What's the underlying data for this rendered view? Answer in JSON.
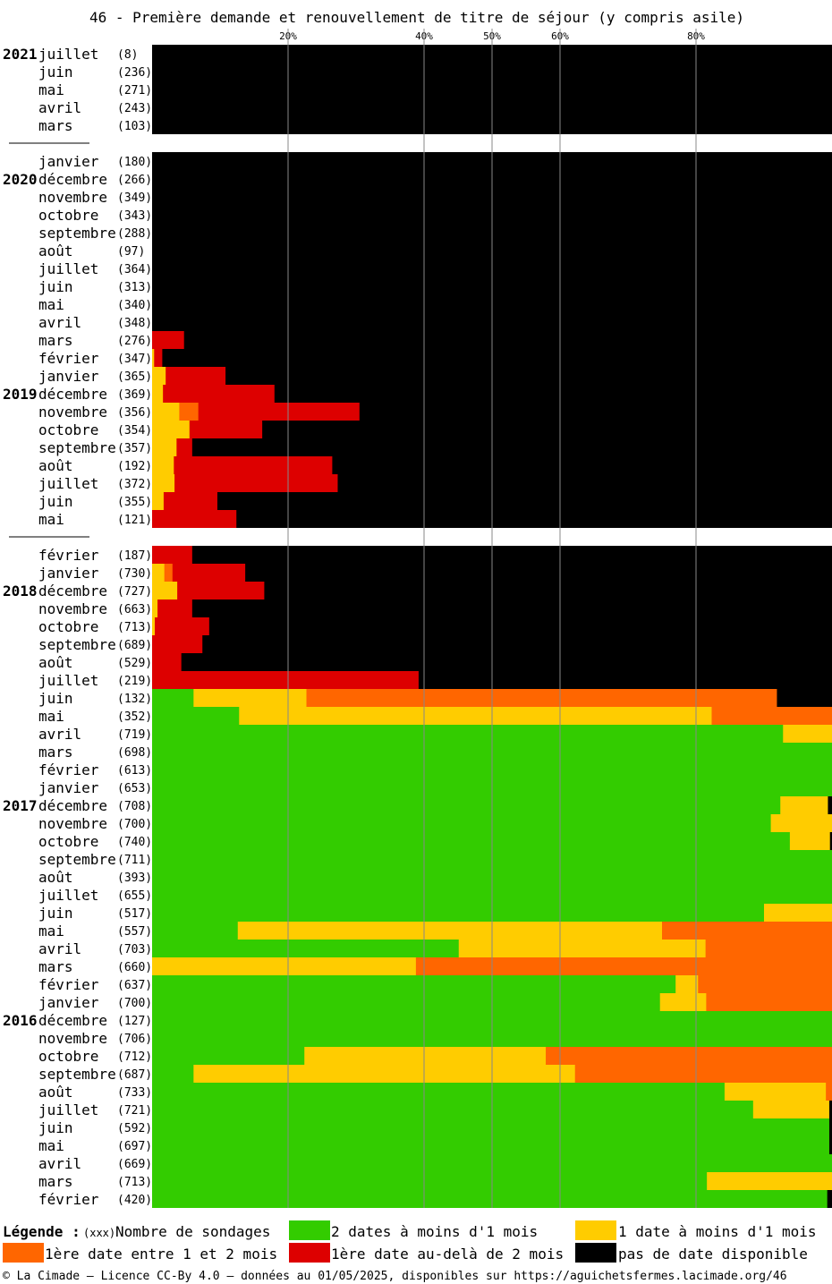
{
  "chart_data": {
    "type": "bar",
    "stacked": true,
    "orientation": "horizontal",
    "title": "46 - Première demande et renouvellement de titre de séjour (y compris asile)",
    "x_ticks": [
      "20%",
      "40%",
      "50%",
      "60%",
      "80%"
    ],
    "tick_values": [
      20,
      40,
      50,
      60,
      80
    ],
    "xlim": [
      0,
      100
    ],
    "series": [
      {
        "key": "green",
        "name": "2 dates à moins d'1 mois",
        "color": "#33cc00"
      },
      {
        "key": "yellow",
        "name": "1 date à moins d'1 mois",
        "color": "#ffcc00"
      },
      {
        "key": "orange",
        "name": "1ère date entre 1 et 2 mois",
        "color": "#ff6600"
      },
      {
        "key": "red",
        "name": "1ère date au-delà de 2 mois",
        "color": "#dd0000"
      },
      {
        "key": "black",
        "name": "pas de date disponible",
        "color": "#000000"
      }
    ],
    "rows": [
      {
        "year": "2021",
        "month": "juillet",
        "count": "(8)",
        "green": 0,
        "yellow": 0,
        "orange": 0,
        "red": 0,
        "black": 100
      },
      {
        "year": "",
        "month": "juin",
        "count": "(236)",
        "green": 0,
        "yellow": 0,
        "orange": 0,
        "red": 0,
        "black": 100
      },
      {
        "year": "",
        "month": "mai",
        "count": "(271)",
        "green": 0,
        "yellow": 0,
        "orange": 0,
        "red": 0,
        "black": 100
      },
      {
        "year": "",
        "month": "avril",
        "count": "(243)",
        "green": 0,
        "yellow": 0,
        "orange": 0,
        "red": 0,
        "black": 100
      },
      {
        "year": "",
        "month": "mars",
        "count": "(103)",
        "green": 0,
        "yellow": 0,
        "orange": 0,
        "red": 0,
        "black": 100
      },
      {
        "gap": true
      },
      {
        "year": "",
        "month": "janvier",
        "count": "(180)",
        "green": 0,
        "yellow": 0,
        "orange": 0,
        "red": 0,
        "black": 100
      },
      {
        "year": "2020",
        "month": "décembre",
        "count": "(266)",
        "green": 0,
        "yellow": 0,
        "orange": 0,
        "red": 0,
        "black": 100
      },
      {
        "year": "",
        "month": "novembre",
        "count": "(349)",
        "green": 0,
        "yellow": 0,
        "orange": 0,
        "red": 0,
        "black": 100
      },
      {
        "year": "",
        "month": "octobre",
        "count": "(343)",
        "green": 0,
        "yellow": 0,
        "orange": 0,
        "red": 0,
        "black": 100
      },
      {
        "year": "",
        "month": "septembre",
        "count": "(288)",
        "green": 0,
        "yellow": 0,
        "orange": 0,
        "red": 0,
        "black": 100
      },
      {
        "year": "",
        "month": "août",
        "count": "(97)",
        "green": 0,
        "yellow": 0,
        "orange": 0,
        "red": 0,
        "black": 100
      },
      {
        "year": "",
        "month": "juillet",
        "count": "(364)",
        "green": 0,
        "yellow": 0,
        "orange": 0,
        "red": 0,
        "black": 100
      },
      {
        "year": "",
        "month": "juin",
        "count": "(313)",
        "green": 0,
        "yellow": 0,
        "orange": 0,
        "red": 0,
        "black": 100
      },
      {
        "year": "",
        "month": "mai",
        "count": "(340)",
        "green": 0,
        "yellow": 0,
        "orange": 0,
        "red": 0,
        "black": 100
      },
      {
        "year": "",
        "month": "avril",
        "count": "(348)",
        "green": 0,
        "yellow": 0,
        "orange": 0,
        "red": 0,
        "black": 100
      },
      {
        "year": "",
        "month": "mars",
        "count": "(276)",
        "green": 0,
        "yellow": 0,
        "orange": 0,
        "red": 4.7,
        "black": 95.3
      },
      {
        "year": "",
        "month": "février",
        "count": "(347)",
        "green": 0,
        "yellow": 0.3,
        "orange": 0,
        "red": 1.2,
        "black": 98.5
      },
      {
        "year": "",
        "month": "janvier",
        "count": "(365)",
        "green": 0,
        "yellow": 2,
        "orange": 0,
        "red": 8.8,
        "black": 89.2
      },
      {
        "year": "2019",
        "month": "décembre",
        "count": "(369)",
        "green": 0,
        "yellow": 1.6,
        "orange": 0,
        "red": 16.4,
        "black": 82
      },
      {
        "year": "",
        "month": "novembre",
        "count": "(356)",
        "green": 0,
        "yellow": 4,
        "orange": 2.8,
        "red": 23.7,
        "black": 69.5
      },
      {
        "year": "",
        "month": "octobre",
        "count": "(354)",
        "green": 0,
        "yellow": 5.5,
        "orange": 0,
        "red": 10.7,
        "black": 83.8
      },
      {
        "year": "",
        "month": "septembre",
        "count": "(357)",
        "green": 0,
        "yellow": 3.6,
        "orange": 0,
        "red": 2.3,
        "black": 94.1
      },
      {
        "year": "",
        "month": "août",
        "count": "(192)",
        "green": 0,
        "yellow": 3.2,
        "orange": 0,
        "red": 23.3,
        "black": 73.5
      },
      {
        "year": "",
        "month": "juillet",
        "count": "(372)",
        "green": 0,
        "yellow": 3.3,
        "orange": 0,
        "red": 24,
        "black": 72.7
      },
      {
        "year": "",
        "month": "juin",
        "count": "(355)",
        "green": 0,
        "yellow": 1.7,
        "orange": 0,
        "red": 7.9,
        "black": 90.4
      },
      {
        "year": "",
        "month": "mai",
        "count": "(121)",
        "green": 0,
        "yellow": 0,
        "orange": 0,
        "red": 12.4,
        "black": 87.6
      },
      {
        "gap": true
      },
      {
        "year": "",
        "month": "février",
        "count": "(187)",
        "green": 0,
        "yellow": 0,
        "orange": 0,
        "red": 5.9,
        "black": 94.1
      },
      {
        "year": "",
        "month": "janvier",
        "count": "(730)",
        "green": 0,
        "yellow": 1.8,
        "orange": 1.2,
        "red": 10.7,
        "black": 86.3
      },
      {
        "year": "2018",
        "month": "décembre",
        "count": "(727)",
        "green": 0,
        "yellow": 3.7,
        "orange": 0,
        "red": 12.8,
        "black": 83.5
      },
      {
        "year": "",
        "month": "novembre",
        "count": "(663)",
        "green": 0,
        "yellow": 0.8,
        "orange": 0,
        "red": 5.1,
        "black": 94.1
      },
      {
        "year": "",
        "month": "octobre",
        "count": "(713)",
        "green": 0,
        "yellow": 0.4,
        "orange": 0,
        "red": 8,
        "black": 91.6
      },
      {
        "year": "",
        "month": "septembre",
        "count": "(689)",
        "green": 0,
        "yellow": 0,
        "orange": 0,
        "red": 7.4,
        "black": 92.6
      },
      {
        "year": "",
        "month": "août",
        "count": "(529)",
        "green": 0,
        "yellow": 0,
        "orange": 0,
        "red": 4.3,
        "black": 95.7
      },
      {
        "year": "",
        "month": "juillet",
        "count": "(219)",
        "green": 0,
        "yellow": 0,
        "orange": 0,
        "red": 39.2,
        "black": 60.8
      },
      {
        "year": "",
        "month": "juin",
        "count": "(132)",
        "green": 6.1,
        "yellow": 16.6,
        "orange": 69.2,
        "red": 0,
        "black": 8.1
      },
      {
        "year": "",
        "month": "mai",
        "count": "(352)",
        "green": 12.8,
        "yellow": 69.5,
        "orange": 17.7,
        "red": 0,
        "black": 0
      },
      {
        "year": "",
        "month": "avril",
        "count": "(719)",
        "green": 92.8,
        "yellow": 7.2,
        "orange": 0,
        "red": 0,
        "black": 0
      },
      {
        "year": "",
        "month": "mars",
        "count": "(698)",
        "green": 100,
        "yellow": 0,
        "orange": 0,
        "red": 0,
        "black": 0
      },
      {
        "year": "",
        "month": "février",
        "count": "(613)",
        "green": 100,
        "yellow": 0,
        "orange": 0,
        "red": 0,
        "black": 0
      },
      {
        "year": "",
        "month": "janvier",
        "count": "(653)",
        "green": 100,
        "yellow": 0,
        "orange": 0,
        "red": 0,
        "black": 0
      },
      {
        "year": "2017",
        "month": "décembre",
        "count": "(708)",
        "green": 92.4,
        "yellow": 7,
        "orange": 0,
        "red": 0,
        "black": 0.6
      },
      {
        "year": "",
        "month": "novembre",
        "count": "(700)",
        "green": 91,
        "yellow": 9,
        "orange": 0,
        "red": 0,
        "black": 0
      },
      {
        "year": "",
        "month": "octobre",
        "count": "(740)",
        "green": 93.8,
        "yellow": 5.9,
        "orange": 0,
        "red": 0,
        "black": 0.3
      },
      {
        "year": "",
        "month": "septembre",
        "count": "(711)",
        "green": 100,
        "yellow": 0,
        "orange": 0,
        "red": 0,
        "black": 0
      },
      {
        "year": "",
        "month": "août",
        "count": "(393)",
        "green": 100,
        "yellow": 0,
        "orange": 0,
        "red": 0,
        "black": 0
      },
      {
        "year": "",
        "month": "juillet",
        "count": "(655)",
        "green": 100,
        "yellow": 0,
        "orange": 0,
        "red": 0,
        "black": 0
      },
      {
        "year": "",
        "month": "juin",
        "count": "(517)",
        "green": 90,
        "yellow": 10,
        "orange": 0,
        "red": 0,
        "black": 0
      },
      {
        "year": "",
        "month": "mai",
        "count": "(557)",
        "green": 12.6,
        "yellow": 62.4,
        "orange": 25,
        "red": 0,
        "black": 0
      },
      {
        "year": "",
        "month": "avril",
        "count": "(703)",
        "green": 45.1,
        "yellow": 36.3,
        "orange": 18.6,
        "red": 0,
        "black": 0
      },
      {
        "year": "",
        "month": "mars",
        "count": "(660)",
        "green": 0,
        "yellow": 38.8,
        "orange": 61.2,
        "red": 0,
        "black": 0
      },
      {
        "year": "",
        "month": "février",
        "count": "(637)",
        "green": 77,
        "yellow": 3.3,
        "orange": 19.7,
        "red": 0,
        "black": 0
      },
      {
        "year": "",
        "month": "janvier",
        "count": "(700)",
        "green": 74.7,
        "yellow": 6.8,
        "orange": 18.5,
        "red": 0,
        "black": 0
      },
      {
        "year": "2016",
        "month": "décembre",
        "count": "(127)",
        "green": 100,
        "yellow": 0,
        "orange": 0,
        "red": 0,
        "black": 0
      },
      {
        "year": "",
        "month": "novembre",
        "count": "(706)",
        "green": 100,
        "yellow": 0,
        "orange": 0,
        "red": 0,
        "black": 0
      },
      {
        "year": "",
        "month": "octobre",
        "count": "(712)",
        "green": 22.4,
        "yellow": 35.5,
        "orange": 42.1,
        "red": 0,
        "black": 0
      },
      {
        "year": "",
        "month": "septembre",
        "count": "(687)",
        "green": 6.1,
        "yellow": 56.1,
        "orange": 37.8,
        "red": 0,
        "black": 0
      },
      {
        "year": "",
        "month": "août",
        "count": "(733)",
        "green": 84.2,
        "yellow": 14.9,
        "orange": 0.9,
        "red": 0,
        "black": 0
      },
      {
        "year": "",
        "month": "juillet",
        "count": "(721)",
        "green": 88.4,
        "yellow": 11.2,
        "orange": 0,
        "red": 0,
        "black": 0.4
      },
      {
        "year": "",
        "month": "juin",
        "count": "(592)",
        "green": 99.6,
        "yellow": 0,
        "orange": 0,
        "red": 0,
        "black": 0.4
      },
      {
        "year": "",
        "month": "mai",
        "count": "(697)",
        "green": 99.6,
        "yellow": 0,
        "orange": 0,
        "red": 0,
        "black": 0.4
      },
      {
        "year": "",
        "month": "avril",
        "count": "(669)",
        "green": 100,
        "yellow": 0,
        "orange": 0,
        "red": 0,
        "black": 0
      },
      {
        "year": "",
        "month": "mars",
        "count": "(713)",
        "green": 81.6,
        "yellow": 18.4,
        "orange": 0,
        "red": 0,
        "black": 0
      },
      {
        "year": "",
        "month": "février",
        "count": "(420)",
        "green": 99.3,
        "yellow": 0,
        "orange": 0,
        "red": 0,
        "black": 0.7
      }
    ]
  },
  "legend": {
    "label": "Légende :",
    "count_key": "(xxx)",
    "count_label": "Nombre de sondages"
  },
  "footer": "© La Cimade – Licence CC-By 4.0 – données au 01/05/2025, disponibles sur https://aguichetsfermes.lacimade.org/46"
}
